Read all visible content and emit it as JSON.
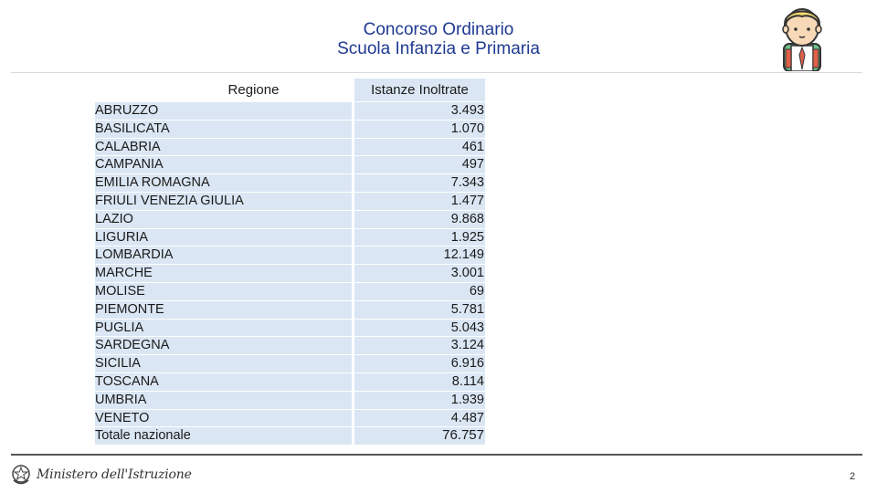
{
  "slide": {
    "title_line1": "Concorso Ordinario",
    "title_line2": "Scuola Infanzia e Primaria",
    "page_number": "2"
  },
  "table": {
    "headers": [
      "Regione",
      "Istanze Inoltrate"
    ],
    "rows": [
      {
        "region": "ABRUZZO",
        "value": "3.493"
      },
      {
        "region": "BASILICATA",
        "value": "1.070"
      },
      {
        "region": "CALABRIA",
        "value": "461"
      },
      {
        "region": "CAMPANIA",
        "value": "497"
      },
      {
        "region": "EMILIA ROMAGNA",
        "value": "7.343"
      },
      {
        "region": "FRIULI VENEZIA GIULIA",
        "value": "1.477"
      },
      {
        "region": "LAZIO",
        "value": "9.868"
      },
      {
        "region": "LIGURIA",
        "value": "1.925"
      },
      {
        "region": "LOMBARDIA",
        "value": "12.149"
      },
      {
        "region": "MARCHE",
        "value": "3.001"
      },
      {
        "region": "MOLISE",
        "value": "69"
      },
      {
        "region": "PIEMONTE",
        "value": "5.781"
      },
      {
        "region": "PUGLIA",
        "value": "5.043"
      },
      {
        "region": "SARDEGNA",
        "value": "3.124"
      },
      {
        "region": "SICILIA",
        "value": "6.916"
      },
      {
        "region": "TOSCANA",
        "value": "8.114"
      },
      {
        "region": "UMBRIA",
        "value": "1.939"
      },
      {
        "region": "VENETO",
        "value": "4.487"
      }
    ],
    "total": {
      "region": "Totale nazionale",
      "value": "76.757"
    }
  },
  "footer": {
    "ministry": "Ministero dell'Istruzione"
  },
  "icons": {
    "avatar": "student-avatar-icon",
    "emblem": "italian-republic-emblem-icon"
  },
  "colors": {
    "title": "#1f3a93",
    "row_fill": "#dae6f3",
    "rule": "#555555"
  }
}
